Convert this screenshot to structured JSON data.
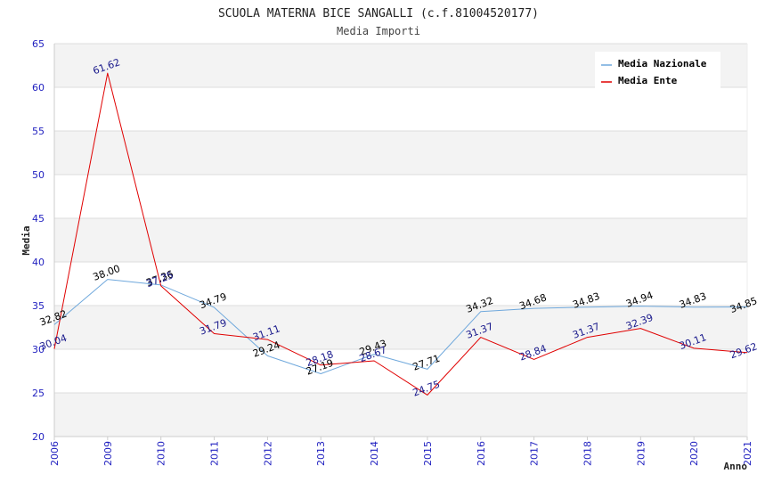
{
  "chart_data": {
    "type": "line",
    "title": "SCUOLA MATERNA BICE SANGALLI (c.f.81004520177)",
    "subtitle": "Media Importi",
    "xlabel": "Anno",
    "ylabel": "Media",
    "ylim": [
      20,
      65
    ],
    "yticks": [
      20,
      25,
      30,
      35,
      40,
      45,
      50,
      55,
      60,
      65
    ],
    "categories": [
      "2006",
      "2009",
      "2010",
      "2011",
      "2012",
      "2013",
      "2014",
      "2015",
      "2016",
      "2017",
      "2018",
      "2019",
      "2020",
      "2021"
    ],
    "series": [
      {
        "name": "Media Nazionale",
        "color": "#6fa8dc",
        "label_color": "#000000",
        "values": [
          32.82,
          38.0,
          37.36,
          34.79,
          29.24,
          27.19,
          29.43,
          27.71,
          34.32,
          34.68,
          34.83,
          34.94,
          34.83,
          34.85
        ],
        "labels": [
          "32.82",
          "38.00",
          "37.36",
          "34.79",
          "29.24",
          "27.19",
          "29.43",
          "27.71",
          "34.32",
          "34.68",
          "34.83",
          "34.94",
          "34.83",
          "34.85"
        ]
      },
      {
        "name": "Media Ente",
        "color": "#e00000",
        "label_color": "#1a1a8c",
        "values": [
          30.04,
          61.62,
          37.25,
          31.79,
          31.11,
          28.18,
          28.67,
          24.75,
          31.37,
          28.84,
          31.37,
          32.39,
          30.11,
          29.62
        ],
        "labels": [
          "30.04",
          "61.62",
          "37.25",
          "31.79",
          "31.11",
          "28.18",
          "28.67",
          "24.75",
          "31.37",
          "28.84",
          "31.37",
          "32.39",
          "30.11",
          "29.62"
        ]
      }
    ],
    "grid": true,
    "legend_position": "top-right"
  }
}
